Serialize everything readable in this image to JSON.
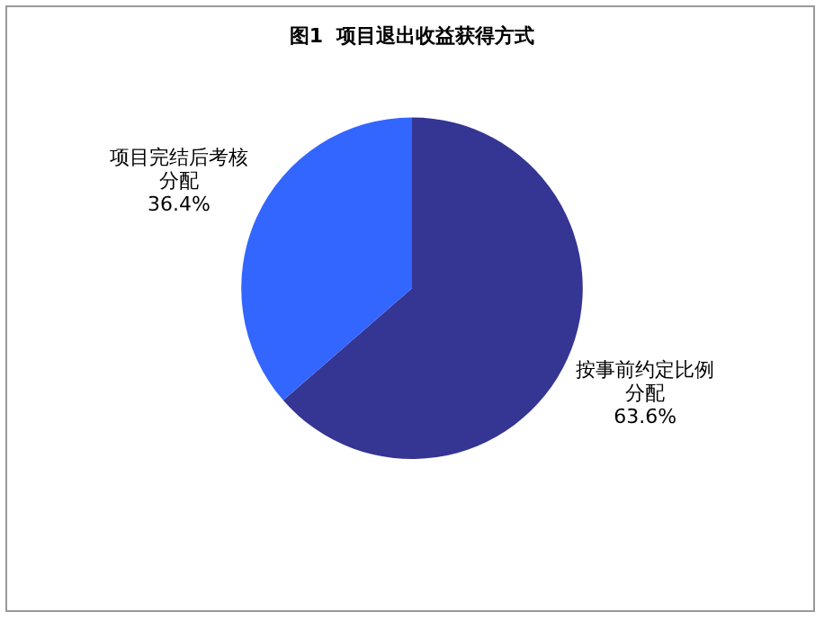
{
  "chart_data": {
    "type": "pie",
    "title": "图1  项目退出收益获得方式",
    "categories": [
      "按事前约定比例分配",
      "项目完结后考核分配"
    ],
    "values": [
      63.6,
      36.4
    ],
    "colors": [
      "#353593",
      "#3366ff"
    ],
    "value_labels": [
      "63.6%",
      "36.4%"
    ],
    "legend": false
  }
}
